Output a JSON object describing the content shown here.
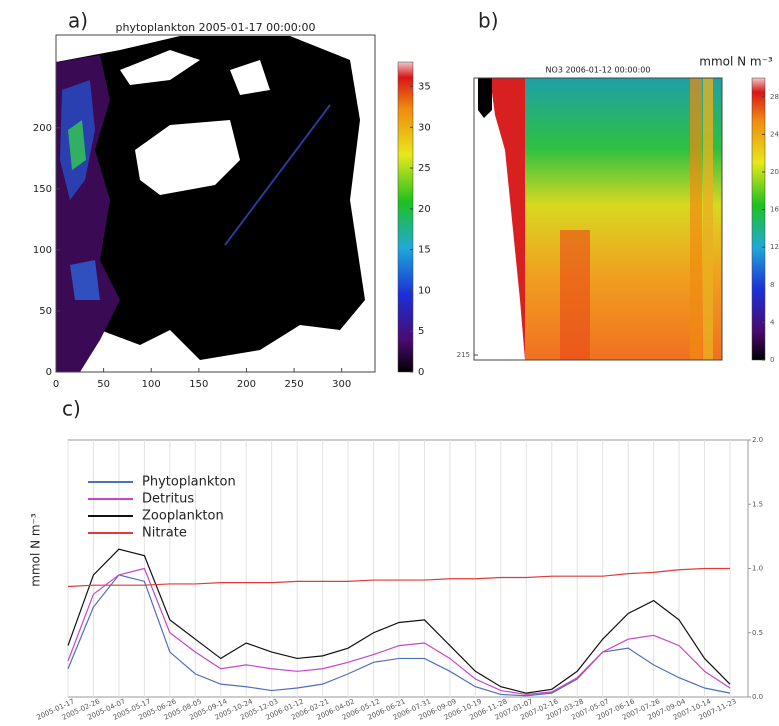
{
  "chart_data": [
    {
      "type": "heatmap",
      "panel_label": "a)",
      "title": "phytoplankton 2005-01-17 00:00:00",
      "xlim": [
        0,
        335
      ],
      "xticks": [
        0,
        50,
        100,
        150,
        200,
        250,
        300
      ],
      "ylim": [
        0,
        276
      ],
      "yticks": [
        0,
        50,
        100,
        150,
        200
      ],
      "colorbar": {
        "lim": [
          0,
          38
        ],
        "ticks": [
          0,
          5,
          10,
          15,
          20,
          25,
          30,
          35
        ]
      }
    },
    {
      "type": "heatmap",
      "panel_label": "b)",
      "title": "NO3 2006-01-12 00:00:00",
      "ylim": [
        215,
        0
      ],
      "yticks": [
        215
      ],
      "colorbar": {
        "label": "mmol  N m⁻³",
        "lim": [
          0,
          30
        ],
        "ticks": [
          0,
          4,
          8,
          12,
          16,
          20,
          24,
          28
        ]
      }
    },
    {
      "type": "line",
      "panel_label": "c)",
      "ylabel": "mmol N m⁻³",
      "x": [
        "2005-01-17",
        "2005-02-26",
        "2005-04-07",
        "2005-05-17",
        "2005-06-26",
        "2005-08-05",
        "2005-09-14",
        "2005-10-24",
        "2005-12-03",
        "2006-01-12",
        "2006-02-21",
        "2006-04-02",
        "2006-05-12",
        "2006-06-21",
        "2006-07-31",
        "2006-09-09",
        "2006-10-19",
        "2006-11-28",
        "2007-01-07",
        "2007-02-16",
        "2007-03-28",
        "2007-05-07",
        "2007-06-16",
        "2007-07-26",
        "2007-09-04",
        "2007-10-14",
        "2007-11-23"
      ],
      "y2lim": [
        0,
        2
      ],
      "y2ticks": [
        {
          "value": 0,
          "label": "0.0"
        },
        {
          "value": 0.5,
          "label": "0.5"
        },
        {
          "value": 1,
          "label": "1.0"
        },
        {
          "value": 1.5,
          "label": "1.5"
        },
        {
          "value": 2,
          "label": "2.0"
        }
      ],
      "grid": true,
      "legend": "upper left",
      "series": [
        {
          "name": "Phytoplankton",
          "color": "#4f6fb8",
          "axis": "y2",
          "values": [
            0.22,
            0.7,
            0.95,
            0.9,
            0.35,
            0.18,
            0.1,
            0.08,
            0.05,
            0.07,
            0.1,
            0.18,
            0.27,
            0.3,
            0.3,
            0.2,
            0.08,
            0.02,
            0.01,
            0.03,
            0.14,
            0.35,
            0.38,
            0.25,
            0.15,
            0.07,
            0.03
          ]
        },
        {
          "name": "Detritus",
          "color": "#c845c8",
          "axis": "y2",
          "values": [
            0.28,
            0.8,
            0.95,
            1.0,
            0.5,
            0.35,
            0.22,
            0.25,
            0.22,
            0.2,
            0.22,
            0.27,
            0.33,
            0.4,
            0.42,
            0.3,
            0.14,
            0.05,
            0.02,
            0.04,
            0.15,
            0.35,
            0.45,
            0.48,
            0.4,
            0.2,
            0.07
          ]
        },
        {
          "name": "Zooplankton",
          "color": "#111111",
          "axis": "y2",
          "values": [
            0.4,
            0.95,
            1.15,
            1.1,
            0.6,
            0.45,
            0.3,
            0.42,
            0.35,
            0.3,
            0.32,
            0.38,
            0.5,
            0.58,
            0.6,
            0.4,
            0.2,
            0.08,
            0.03,
            0.06,
            0.2,
            0.45,
            0.65,
            0.75,
            0.6,
            0.3,
            0.1
          ]
        },
        {
          "name": "Nitrate",
          "color": "#e03a3a",
          "axis": "y2",
          "values": [
            0.86,
            0.87,
            0.87,
            0.87,
            0.88,
            0.88,
            0.89,
            0.89,
            0.89,
            0.9,
            0.9,
            0.9,
            0.91,
            0.91,
            0.91,
            0.92,
            0.92,
            0.93,
            0.93,
            0.94,
            0.94,
            0.94,
            0.96,
            0.97,
            0.99,
            1.0,
            1.0
          ]
        }
      ]
    }
  ]
}
